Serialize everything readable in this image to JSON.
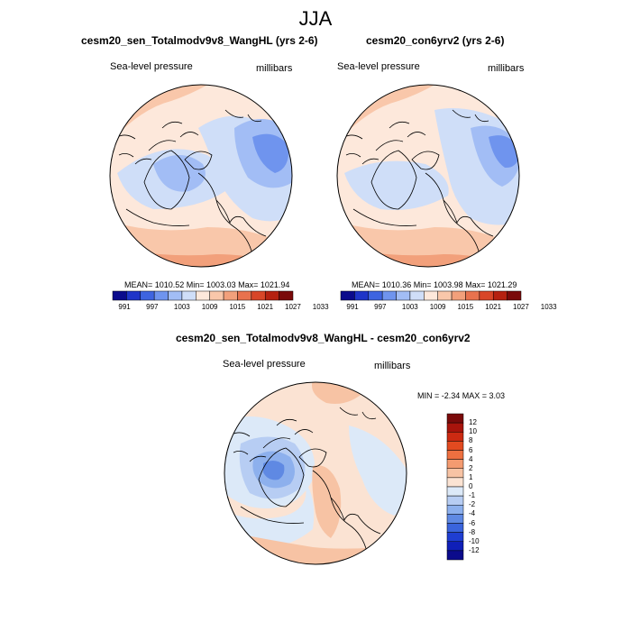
{
  "figure": {
    "title": "JJA"
  },
  "panels": [
    {
      "title": "cesm20_sen_Totalmodv9v8_WangHL (yrs 2-6)",
      "left_label": "Sea-level pressure",
      "right_label": "millibars",
      "stats": "MEAN= 1010.52  Min= 1003.03  Max= 1021.94"
    },
    {
      "title": "cesm20_con6yrv2 (yrs 2-6)",
      "left_label": "Sea-level pressure",
      "right_label": "millibars",
      "stats": "MEAN= 1010.36  Min= 1003.98  Max= 1021.29"
    },
    {
      "title": "cesm20_sen_Totalmodv9v8_WangHL - cesm20_con6yrv2",
      "left_label": "Sea-level pressure",
      "right_label": "millibars",
      "stats": "MIN =  -2.34 MAX =   3.03"
    }
  ],
  "colorbar_horizontal": {
    "colors": [
      "#0b0b8c",
      "#1f35c8",
      "#3e64e0",
      "#6f94ee",
      "#a2bdf5",
      "#cfdef8",
      "#fde8db",
      "#f9c7aa",
      "#f2a07b",
      "#e8724e",
      "#d84628",
      "#b52110",
      "#7a0a0a"
    ],
    "tick_labels": [
      "991",
      "997",
      "1003",
      "1009",
      "1015",
      "1021",
      "1027",
      "1033"
    ]
  },
  "colorbar_vertical": {
    "colors_top_to_bottom": [
      "#7a0a0a",
      "#a8140c",
      "#cc2a12",
      "#e24a20",
      "#ee7040",
      "#f49b70",
      "#f7c3a4",
      "#fbe3d3",
      "#dce9f8",
      "#b7cdf3",
      "#8db0ed",
      "#5f89e3",
      "#3a64dc",
      "#1f3ed2",
      "#0f1fb8",
      "#0b0b8c"
    ],
    "tick_labels": [
      "12",
      "10",
      "8",
      "6",
      "4",
      "2",
      "1",
      "0",
      "-1",
      "-2",
      "-4",
      "-6",
      "-8",
      "-10",
      "-12"
    ]
  },
  "chart_data": {
    "type": "map",
    "projection": "north polar stereographic",
    "variable": "Sea-level pressure",
    "units": "millibars",
    "season": "JJA",
    "panels": [
      {
        "case": "cesm20_sen_Totalmodv9v8_WangHL",
        "years": "2-6",
        "mean": 1010.52,
        "min": 1003.03,
        "max": 1021.94
      },
      {
        "case": "cesm20_con6yrv2",
        "years": "2-6",
        "mean": 1010.36,
        "min": 1003.98,
        "max": 1021.29
      },
      {
        "case": "difference",
        "min": -2.34,
        "max": 3.03
      }
    ],
    "contour_levels_main": [
      991,
      994,
      997,
      1000,
      1003,
      1006,
      1009,
      1012,
      1015,
      1018,
      1021,
      1024,
      1027,
      1030,
      1033
    ],
    "contour_levels_diff": [
      -12,
      -10,
      -8,
      -6,
      -4,
      -2,
      -1,
      0,
      1,
      2,
      4,
      6,
      8,
      10,
      12
    ]
  }
}
